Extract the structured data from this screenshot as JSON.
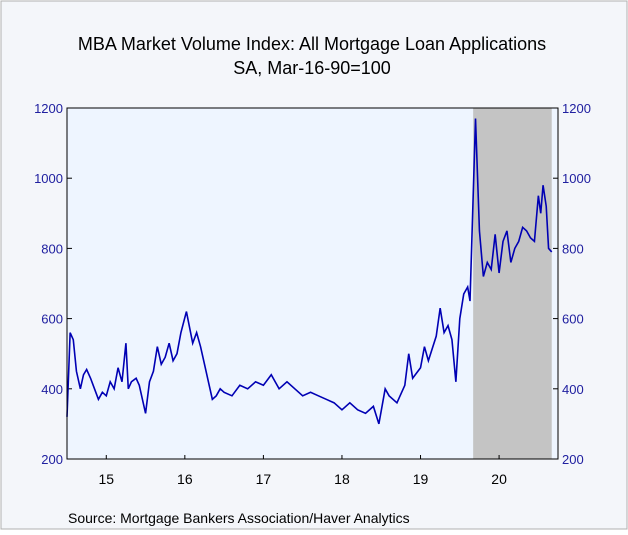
{
  "chart_data": {
    "type": "line",
    "title": "MBA Market Volume Index: All Mortgage Loan Applications",
    "subtitle": "SA, Mar-16-90=100",
    "source": "Source:  Mortgage Bankers Association/Haver Analytics",
    "x": [
      2015.0,
      2015.04,
      2015.08,
      2015.12,
      2015.17,
      2015.21,
      2015.25,
      2015.3,
      2015.35,
      2015.4,
      2015.45,
      2015.5,
      2015.55,
      2015.6,
      2015.65,
      2015.7,
      2015.75,
      2015.78,
      2015.82,
      2015.88,
      2015.92,
      2016.0,
      2016.05,
      2016.1,
      2016.15,
      2016.2,
      2016.25,
      2016.3,
      2016.35,
      2016.4,
      2016.45,
      2016.52,
      2016.6,
      2016.65,
      2016.7,
      2016.75,
      2016.8,
      2016.85,
      2016.9,
      2016.95,
      2017.0,
      2017.1,
      2017.2,
      2017.3,
      2017.4,
      2017.5,
      2017.6,
      2017.7,
      2017.8,
      2017.9,
      2018.0,
      2018.1,
      2018.2,
      2018.3,
      2018.4,
      2018.5,
      2018.6,
      2018.7,
      2018.8,
      2018.9,
      2018.97,
      2019.05,
      2019.1,
      2019.2,
      2019.3,
      2019.35,
      2019.4,
      2019.5,
      2019.55,
      2019.6,
      2019.7,
      2019.75,
      2019.8,
      2019.85,
      2019.9,
      2019.95,
      2020.0,
      2020.05,
      2020.1,
      2020.13,
      2020.2,
      2020.25,
      2020.3,
      2020.35,
      2020.4,
      2020.45,
      2020.5,
      2020.55,
      2020.6,
      2020.65,
      2020.7,
      2020.75,
      2020.8,
      2020.85,
      2020.9,
      2020.95,
      2021.0,
      2021.03,
      2021.06,
      2021.1,
      2021.13,
      2021.17
    ],
    "series": [
      {
        "name": "MBA Market Volume Index",
        "color": "#0000b4",
        "values": [
          320,
          560,
          540,
          450,
          400,
          440,
          455,
          430,
          400,
          370,
          390,
          380,
          420,
          400,
          460,
          420,
          530,
          400,
          420,
          430,
          410,
          330,
          420,
          450,
          520,
          470,
          490,
          530,
          480,
          500,
          560,
          620,
          530,
          560,
          520,
          470,
          420,
          370,
          380,
          400,
          390,
          380,
          410,
          400,
          420,
          410,
          440,
          400,
          420,
          400,
          380,
          390,
          380,
          370,
          360,
          340,
          360,
          340,
          330,
          350,
          300,
          400,
          380,
          360,
          410,
          500,
          430,
          460,
          520,
          480,
          550,
          630,
          560,
          580,
          540,
          420,
          600,
          670,
          690,
          650,
          1170,
          850,
          720,
          760,
          740,
          840,
          730,
          820,
          850,
          760,
          800,
          820,
          860,
          850,
          830,
          820,
          950,
          900,
          980,
          920,
          800,
          790
        ]
      }
    ],
    "shaded_region": [
      2020.17,
      2021.17
    ],
    "xlim": [
      2015,
      2021.25
    ],
    "xticks": [
      {
        "value": 2015.5,
        "label": "15"
      },
      {
        "value": 2016.5,
        "label": "16"
      },
      {
        "value": 2017.5,
        "label": "17"
      },
      {
        "value": 2018.5,
        "label": "18"
      },
      {
        "value": 2019.5,
        "label": "19"
      },
      {
        "value": 2020.5,
        "label": "20"
      }
    ],
    "ylim": [
      200,
      1200
    ],
    "yticks": [
      200,
      400,
      600,
      800,
      1000,
      1200
    ]
  }
}
